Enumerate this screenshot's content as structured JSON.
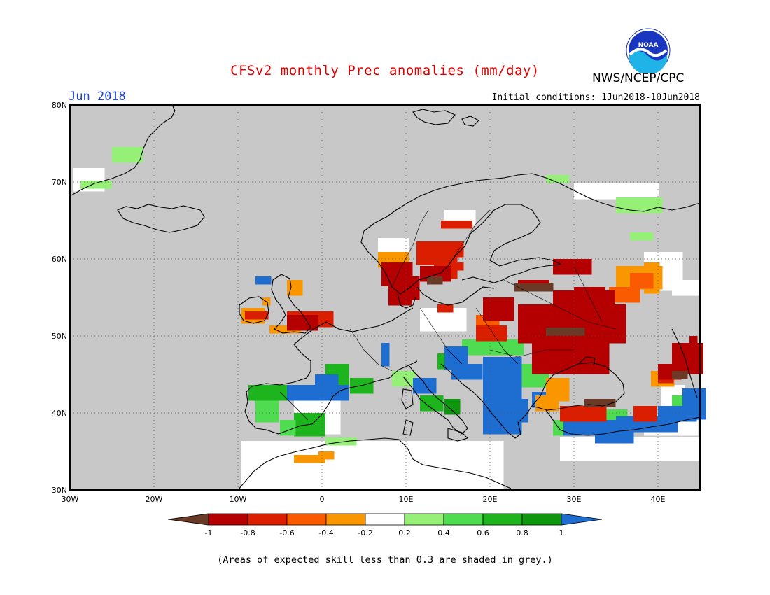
{
  "title": "CFSv2 monthly Prec anomalies (mm/day)",
  "month_label": "Jun 2018",
  "initial_conditions": "Initial conditions: 1Jun2018-10Jun2018",
  "agency": "NWS/NCEP/CPC",
  "logo_text": "NOAA",
  "footnote": "(Areas of expected skill less than 0.3 are shaded in grey.)",
  "map": {
    "lon_ticks": [
      "30W",
      "20W",
      "10W",
      "0",
      "10E",
      "20E",
      "30E",
      "40E"
    ],
    "lat_ticks": [
      "80N",
      "70N",
      "60N",
      "50N",
      "40N",
      "30N"
    ],
    "background": "#c8c8c8",
    "gridlines": "dotted"
  },
  "colorbar": {
    "tick_labels": [
      "-1",
      "-0.8",
      "-0.6",
      "-0.4",
      "-0.2",
      "0.2",
      "0.4",
      "0.6",
      "0.8",
      "1"
    ],
    "colors": [
      "#6b3a26",
      "#b40000",
      "#dc1e00",
      "#fa5a00",
      "#fa9600",
      "#ffffff",
      "#96f078",
      "#50dc50",
      "#1eb41e",
      "#0f960f",
      "#1e6ed2"
    ]
  }
}
